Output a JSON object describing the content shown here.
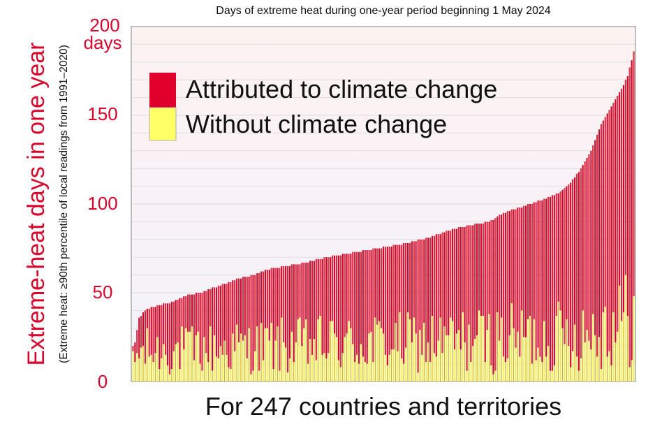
{
  "chart_data": {
    "type": "bar",
    "stacked": true,
    "title": "Days of extreme heat during one-year period beginning 1 May 2024",
    "ylabel": "Extreme-heat days in one year",
    "ylabel_note": "(Extreme heat:   ≥90th percentile of local readings from 1991–2020)",
    "xlabel": "For 247 countries and territories",
    "ylim": [
      0,
      200
    ],
    "yticks": [
      "0",
      "50",
      "100",
      "150",
      "200"
    ],
    "ytick_unit": "days",
    "grid": true,
    "legend_position": "top-left",
    "n_categories": 247,
    "totals_anchor_days": [
      [
        0,
        20
      ],
      [
        1,
        22
      ],
      [
        3,
        36
      ],
      [
        6,
        40
      ],
      [
        10,
        42
      ],
      [
        20,
        45
      ],
      [
        25,
        48
      ],
      [
        33,
        50
      ],
      [
        40,
        53
      ],
      [
        45,
        55
      ],
      [
        52,
        58
      ],
      [
        60,
        60
      ],
      [
        65,
        63
      ],
      [
        75,
        65
      ],
      [
        85,
        67
      ],
      [
        95,
        70
      ],
      [
        105,
        72
      ],
      [
        115,
        74
      ],
      [
        125,
        76
      ],
      [
        135,
        78
      ],
      [
        145,
        81
      ],
      [
        155,
        85
      ],
      [
        165,
        88
      ],
      [
        175,
        90
      ],
      [
        182,
        95
      ],
      [
        190,
        98
      ],
      [
        195,
        100
      ],
      [
        205,
        104
      ],
      [
        210,
        107
      ],
      [
        215,
        112
      ],
      [
        220,
        120
      ],
      [
        225,
        130
      ],
      [
        230,
        145
      ],
      [
        235,
        155
      ],
      [
        240,
        165
      ],
      [
        243,
        172
      ],
      [
        246,
        186
      ]
    ],
    "series": [
      {
        "name": "Attributed to climate change",
        "color": "#e0002b",
        "stroke": "#8b1a3a"
      },
      {
        "name": "Without climate change",
        "color": "#ffff66",
        "stroke": "#b6c26a"
      }
    ]
  }
}
